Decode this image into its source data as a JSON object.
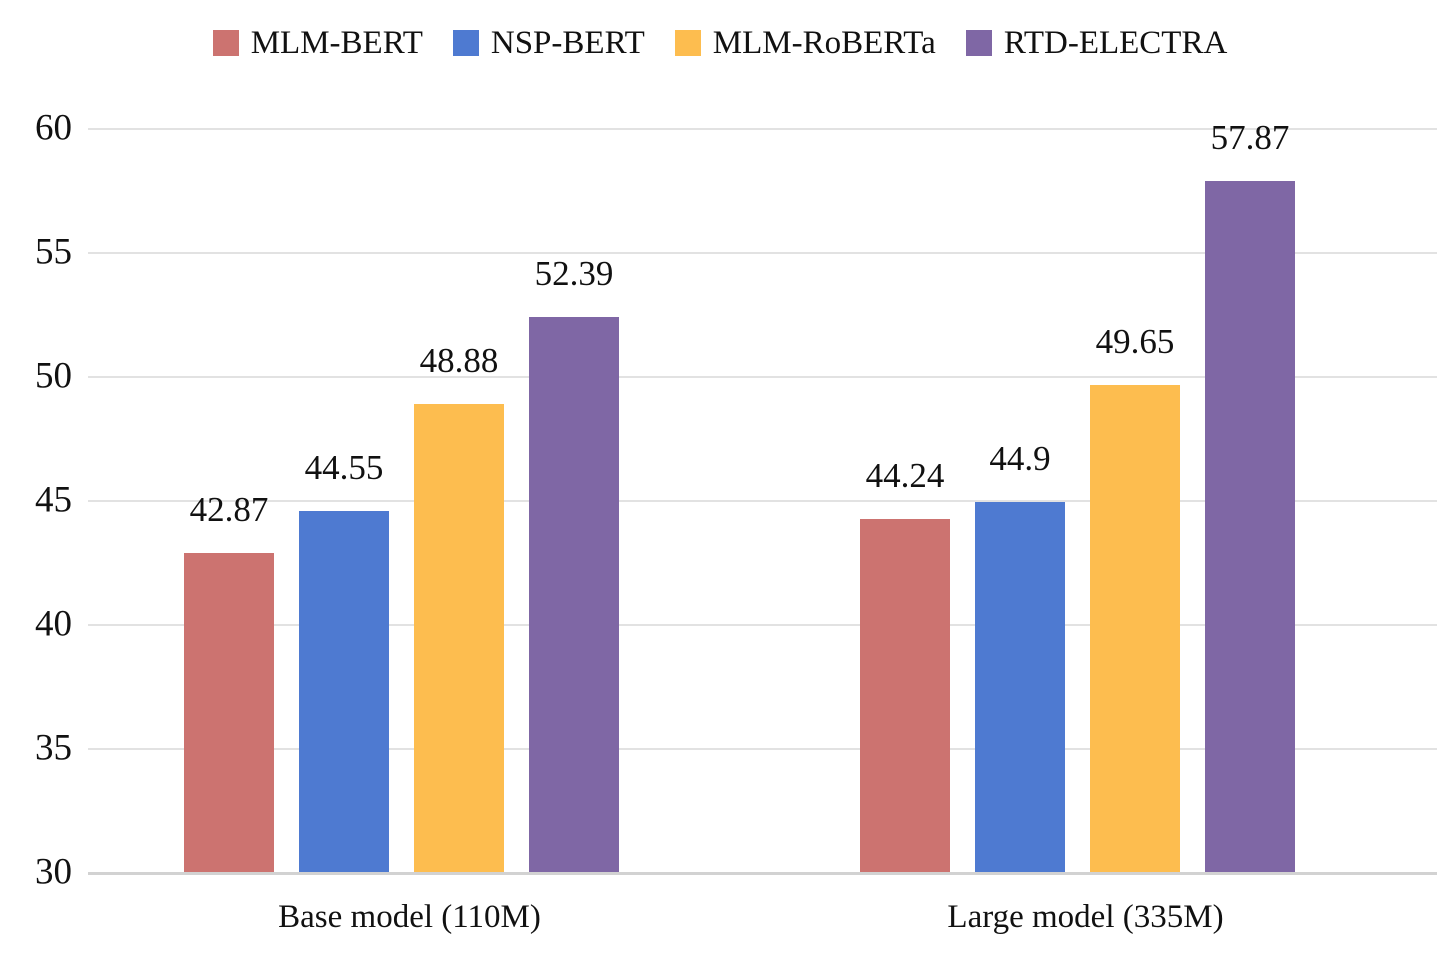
{
  "chart_data": {
    "type": "bar",
    "title": "",
    "categories": [
      "Base model (110M)",
      "Large model (335M)"
    ],
    "series": [
      {
        "name": "MLM-BERT",
        "color": "#cc7370",
        "values": [
          42.87,
          44.24
        ]
      },
      {
        "name": "NSP-BERT",
        "color": "#4e7ad1",
        "values": [
          44.55,
          44.9
        ]
      },
      {
        "name": "MLM-RoBERTa",
        "color": "#fdbd4f",
        "values": [
          48.88,
          49.65
        ]
      },
      {
        "name": "RTD-ELECTRA",
        "color": "#7f67a5",
        "values": [
          52.39,
          57.87
        ]
      }
    ],
    "value_labels": [
      [
        "42.87",
        "44.55",
        "48.88",
        "52.39"
      ],
      [
        "44.24",
        "44.9",
        "49.65",
        "57.87"
      ]
    ],
    "ylim": [
      30,
      60
    ],
    "yticks": [
      30,
      35,
      40,
      45,
      50,
      55,
      60
    ],
    "grid": true,
    "legend_position": "top",
    "colors": {
      "gridline": "#e2e2e2",
      "axis_line": "#d2d2d2",
      "text": "#111111",
      "background": "#ffffff"
    }
  }
}
